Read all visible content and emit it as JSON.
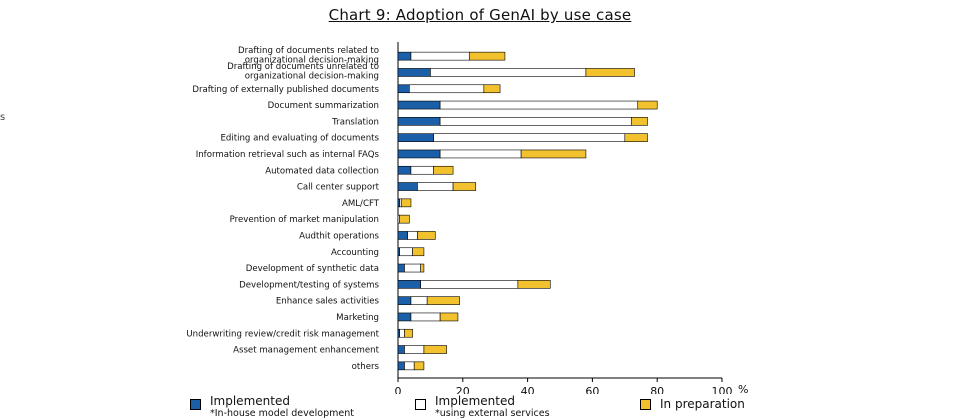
{
  "stray_mark": "s",
  "chart_data": {
    "type": "bar",
    "orientation": "horizontal",
    "stacked": true,
    "title": "Chart 9: Adoption of GenAI by use case",
    "unit": "%",
    "xlim": [
      0,
      100
    ],
    "xticks": [
      0,
      20,
      40,
      60,
      80,
      100
    ],
    "categories": [
      [
        "Drafting of documents related to",
        "organizational decision-making"
      ],
      [
        "Drafting of documents unrelated to",
        "organizational decision-making"
      ],
      [
        "Drafting of externally published documents"
      ],
      [
        "Document summarization"
      ],
      [
        "Translation"
      ],
      [
        "Editing and evaluating of documents"
      ],
      [
        "Information retrieval such as internal FAQs"
      ],
      [
        "Automated data collection"
      ],
      [
        "Call center support"
      ],
      [
        "AML/CFT"
      ],
      [
        "Prevention of market manipulation"
      ],
      [
        "Audthit operations"
      ],
      [
        "Accounting"
      ],
      [
        "Development of synthetic data"
      ],
      [
        "Development/testing of systems"
      ],
      [
        "Enhance sales activities"
      ],
      [
        "Marketing"
      ],
      [
        "Underwriting review/credit risk management"
      ],
      [
        "Asset management enhancement"
      ],
      [
        "others"
      ]
    ],
    "series": [
      {
        "name": "Implemented",
        "note": "*In-house model development",
        "color": "#1a5fa8",
        "values": [
          4,
          10,
          3.5,
          13,
          13,
          11,
          13,
          4,
          6,
          0.5,
          0,
          3,
          0.5,
          2,
          7,
          4,
          4,
          0.5,
          2,
          2
        ]
      },
      {
        "name": "Implemented",
        "note": "*using external services",
        "color": "#ffffff",
        "values": [
          18,
          48,
          23,
          61,
          59,
          59,
          25,
          7,
          11,
          0.5,
          0.5,
          3,
          4,
          5,
          30,
          5,
          9,
          1.5,
          6,
          3
        ]
      },
      {
        "name": "In preparation",
        "note": "",
        "color": "#f2c12e",
        "values": [
          11,
          15,
          5,
          6,
          5,
          7,
          20,
          6,
          7,
          3,
          3,
          5.5,
          3.5,
          1,
          10,
          10,
          5.5,
          2.5,
          7,
          3
        ]
      }
    ],
    "legend_position": "bottom"
  }
}
